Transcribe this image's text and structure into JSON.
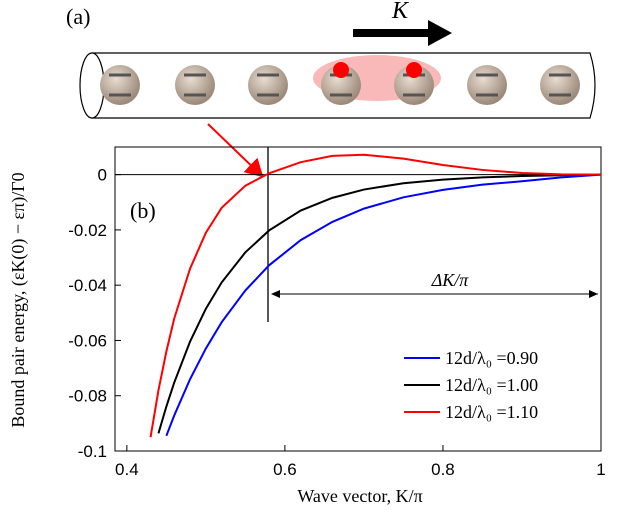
{
  "chart_data": {
    "type": "line",
    "panel_a_label": "(a)",
    "panel_b_label": "(b)",
    "k_label": "K",
    "delta_label": "ΔK/π",
    "xlabel": "Wave vector, K/π",
    "ylabel": "Bound pair energy, (εK(0) − επ)/Γ0",
    "x": [
      0.43,
      0.44,
      0.45,
      0.46,
      0.48,
      0.5,
      0.52,
      0.55,
      0.58,
      0.62,
      0.66,
      0.7,
      0.75,
      0.8,
      0.85,
      0.9,
      0.95,
      1.0
    ],
    "series": [
      {
        "name": "12d/λ₀ =0.90",
        "color": "#0000ff",
        "values": [
          null,
          null,
          -0.0945,
          -0.0871,
          -0.074,
          -0.0629,
          -0.0534,
          -0.0419,
          -0.0328,
          -0.0237,
          -0.0171,
          -0.0123,
          -0.0082,
          -0.0055,
          -0.0036,
          -0.0024,
          -0.001,
          0
        ]
      },
      {
        "name": "12d/λ₀ =1.00",
        "color": "#000000",
        "values": [
          null,
          -0.0936,
          -0.0839,
          -0.0752,
          -0.0604,
          -0.0485,
          -0.039,
          -0.0281,
          -0.0202,
          -0.013,
          -0.0084,
          -0.0054,
          -0.0031,
          -0.0018,
          -0.001,
          -0.0005,
          -0.0002,
          0
        ]
      },
      {
        "name": "12d/λ₀ =1.10",
        "color": "#ff0000",
        "values": [
          -0.095,
          -0.078,
          -0.064,
          -0.052,
          -0.034,
          -0.021,
          -0.012,
          -0.004,
          0.0005,
          0.0045,
          0.0068,
          0.0072,
          0.0058,
          0.0035,
          0.0017,
          0.0006,
          0.0001,
          0
        ]
      }
    ],
    "xlim": [
      0.385,
      1
    ],
    "ylim": [
      -0.1,
      0.01
    ],
    "xticks": [
      0.4,
      0.6,
      0.8,
      1
    ],
    "yticks": [
      0,
      -0.02,
      -0.04,
      -0.06,
      -0.08,
      -0.1
    ]
  }
}
